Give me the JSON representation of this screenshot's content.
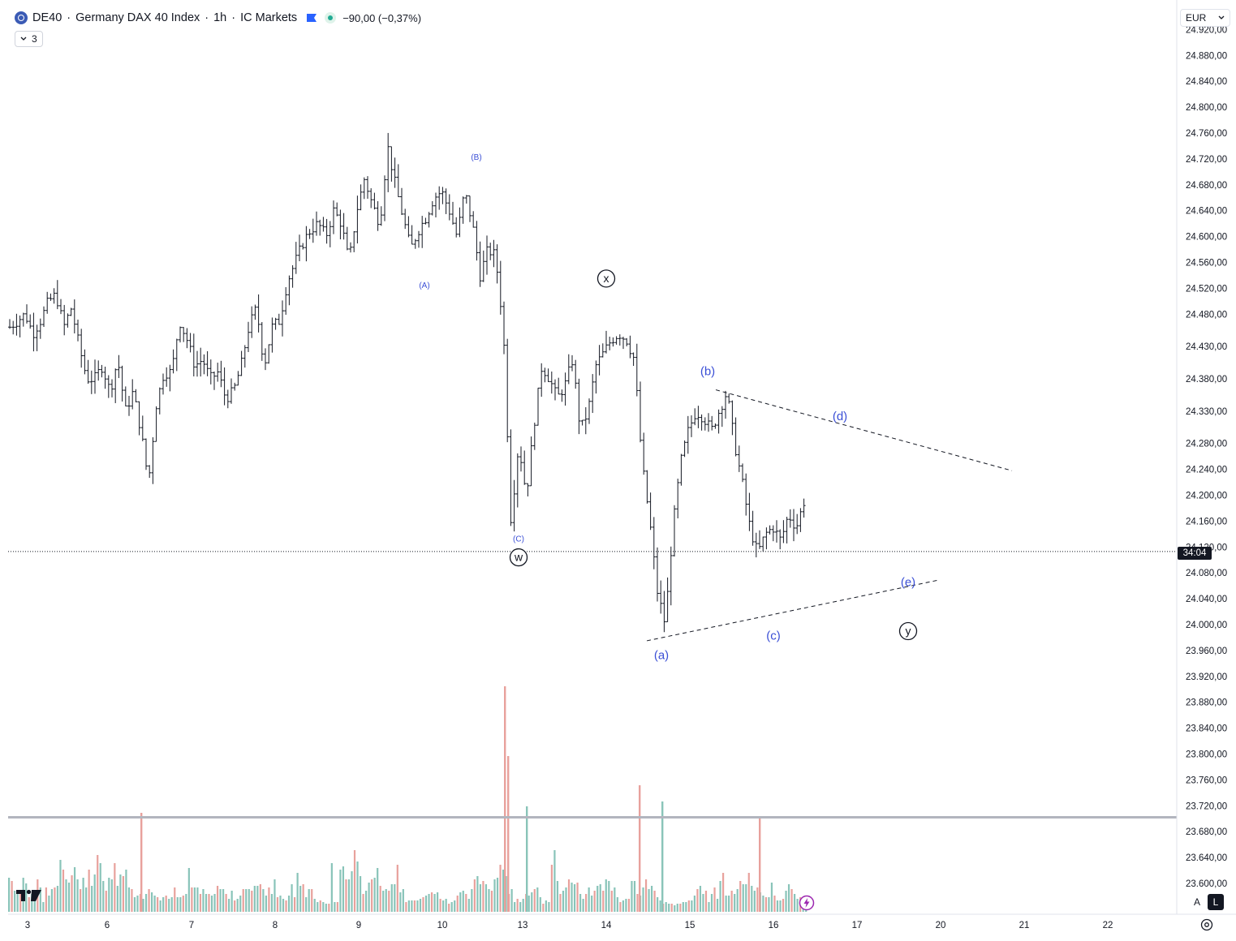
{
  "header": {
    "symbol": "DE40",
    "title": "Germany DAX 40 Index",
    "interval": "1h",
    "broker": "IC Markets",
    "sep": "·",
    "change": "−90,00 (−0,37%)",
    "indicator_count": "3"
  },
  "currency": "EUR",
  "price_tag": "34:04",
  "scale_buttons": {
    "auto": "A",
    "log": "L"
  },
  "colors": {
    "up_volume": "#89c4b9",
    "down_volume": "#e8a19c",
    "wave_primary": "#3b4fd6",
    "wave_circle": "#131722",
    "background": "#ffffff"
  },
  "chart_data": {
    "type": "ohlc",
    "interval": "1h",
    "ylim": [
      23560,
      24940
    ],
    "price_ticks": [
      "24.920,00",
      "24.880,00",
      "24.840,00",
      "24.800,00",
      "24.760,00",
      "24.720,00",
      "24.680,00",
      "24.640,00",
      "24.600,00",
      "24.560,00",
      "24.520,00",
      "24.480,00",
      "24.430,00",
      "24.380,00",
      "24.330,00",
      "24.280,00",
      "24.240,00",
      "24.200,00",
      "24.160,00",
      "24.120,00",
      "24.080,00",
      "24.040,00",
      "24.000,00",
      "23.960,00",
      "23.920,00",
      "23.880,00",
      "23.840,00",
      "23.800,00",
      "23.760,00",
      "23.720,00",
      "23.680,00",
      "23.640,00",
      "23.600,00"
    ],
    "date_ticks": [
      "3",
      "6",
      "7",
      "8",
      "9",
      "10",
      "13",
      "14",
      "15",
      "16",
      "17",
      "20",
      "21",
      "22"
    ],
    "current_price": 24113,
    "waves": [
      {
        "label": "(A)",
        "price": 24527,
        "style": "small"
      },
      {
        "label": "(B)",
        "price": 24725,
        "style": "small"
      },
      {
        "label": "(C)",
        "price": 24135,
        "style": "small"
      },
      {
        "label": "w",
        "price": 24104,
        "style": "circle"
      },
      {
        "label": "x",
        "price": 24535,
        "style": "circle"
      },
      {
        "label": "(a)",
        "price": 23953,
        "style": "paren"
      },
      {
        "label": "(b)",
        "price": 24392,
        "style": "paren"
      },
      {
        "label": "(c)",
        "price": 23983,
        "style": "paren"
      },
      {
        "label": "(d)",
        "price": 24322,
        "style": "paren"
      },
      {
        "label": "(e)",
        "price": 24066,
        "style": "paren"
      },
      {
        "label": "y",
        "price": 23990,
        "style": "circle"
      }
    ],
    "trendlines": [
      {
        "from_price": 24363,
        "to_price": 24238,
        "style": "dashed"
      },
      {
        "from_price": 23975,
        "to_price": 24069,
        "style": "dashed"
      }
    ],
    "anchors": [
      24460,
      24470,
      24480,
      24450,
      24470,
      24500,
      24510,
      24460,
      24490,
      24430,
      24380,
      24380,
      24400,
      24360,
      24410,
      24330,
      24360,
      24300,
      24220,
      24340,
      24390,
      24390,
      24470,
      24440,
      24400,
      24410,
      24380,
      24390,
      24350,
      24360,
      24400,
      24460,
      24490,
      24400,
      24460,
      24470,
      24530,
      24560,
      24590,
      24610,
      24620,
      24600,
      24640,
      24620,
      24560,
      24640,
      24690,
      24650,
      24620,
      24740,
      24680,
      24630,
      24580,
      24610,
      24630,
      24660,
      24670,
      24640,
      24600,
      24670,
      24620,
      24540,
      24580,
      24570,
      24460,
      24160,
      24280,
      24200,
      24310,
      24400,
      24380,
      24350,
      24370,
      24410,
      24300,
      24330,
      24400,
      24420,
      24440,
      24450,
      24440,
      24410,
      24250,
      24160,
      24050,
      24000,
      24150,
      24250,
      24300,
      24330,
      24320,
      24300,
      24330,
      24360,
      24280,
      24220,
      24150,
      24110,
      24140,
      24150,
      24130,
      24170,
      24150,
      24190
    ],
    "volume": [
      {
        "start": 10,
        "step": 2.15,
        "values": [
          42,
          38,
          26,
          25,
          22,
          42,
          35,
          18,
          22,
          24,
          40,
          30,
          12,
          30,
          20,
          28,
          30,
          32,
          64,
          52,
          40,
          36,
          45,
          55,
          40,
          28,
          42,
          30,
          52,
          32,
          46,
          70,
          60,
          38,
          26,
          42,
          40,
          60,
          32,
          46,
          44,
          52,
          30,
          28,
          18,
          20,
          22,
          16,
          22,
          28,
          24,
          20,
          18,
          14,
          18,
          20,
          16,
          18,
          30,
          18,
          18,
          20,
          22,
          54,
          30,
          30,
          30,
          22,
          28,
          22,
          22,
          20,
          22,
          32,
          28,
          28,
          22,
          16,
          26,
          14,
          16,
          20,
          28,
          28,
          28,
          26,
          32,
          32,
          34,
          28,
          20,
          30,
          22,
          40,
          18,
          20,
          16,
          14,
          20,
          34,
          18,
          48,
          32,
          34,
          18,
          28,
          28,
          16,
          12,
          14,
          12,
          10,
          10,
          60,
          12,
          12,
          52,
          56,
          40,
          40,
          50,
          76,
          62,
          44,
          22,
          26,
          36,
          40,
          42,
          54,
          32,
          26,
          28,
          26,
          34,
          34,
          58,
          24,
          28,
          12,
          14,
          14,
          14,
          14,
          16,
          18,
          20,
          22,
          24,
          22,
          24,
          16,
          14,
          16,
          10,
          12,
          14,
          20,
          24,
          26,
          22,
          16,
          28,
          40,
          44,
          34,
          38,
          34,
          28,
          26,
          40,
          42,
          58,
          52,
          44,
          22,
          28,
          12,
          16,
          12,
          16,
          22,
          20,
          24,
          28,
          30,
          18,
          10,
          14,
          12,
          58,
          76,
          38,
          22,
          26,
          30,
          40,
          36,
          34,
          36,
          22,
          16,
          22,
          30,
          20,
          26,
          32,
          34,
          26,
          40,
          38,
          26,
          30,
          18,
          12,
          14,
          16,
          16,
          38,
          38,
          22,
          20,
          30,
          40,
          28,
          32,
          26,
          18,
          14,
          10,
          12,
          10,
          10,
          8,
          10,
          10,
          12,
          12,
          14,
          14,
          20,
          28,
          32,
          22,
          26,
          12,
          22,
          30,
          16,
          38,
          48,
          20,
          20,
          26,
          22,
          28,
          38,
          34,
          34,
          48,
          32,
          26,
          30,
          24,
          20,
          18,
          18,
          36,
          20,
          14,
          14,
          16,
          26,
          34,
          28,
          22,
          16,
          18,
          14,
          20,
          24,
          8,
          20,
          24,
          26,
          30
        ]
      }
    ]
  }
}
